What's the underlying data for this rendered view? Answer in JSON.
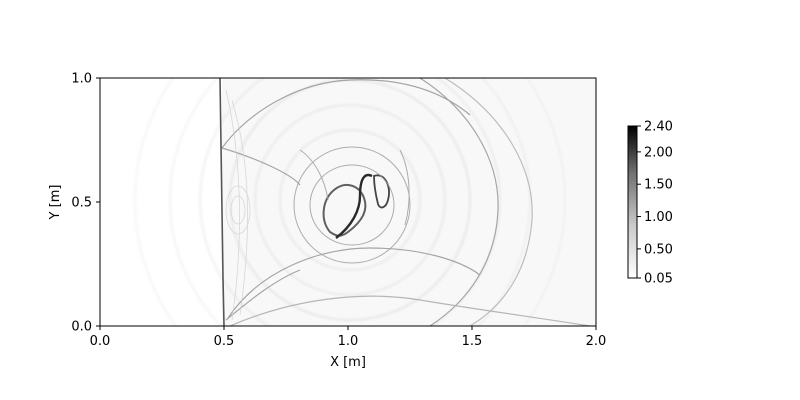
{
  "chart_data": {
    "type": "heatmap",
    "description_free": true,
    "xlabel": "X [m]",
    "ylabel": "Y [m]",
    "xlim": [
      0.0,
      2.0
    ],
    "ylim": [
      0.0,
      1.0
    ],
    "x_ticks": [
      {
        "value": 0.0,
        "label": "0.0"
      },
      {
        "value": 0.5,
        "label": "0.5"
      },
      {
        "value": 1.0,
        "label": "1.0"
      },
      {
        "value": 1.5,
        "label": "1.5"
      },
      {
        "value": 2.0,
        "label": "2.0"
      }
    ],
    "y_ticks": [
      {
        "value": 0.0,
        "label": "0.0"
      },
      {
        "value": 0.5,
        "label": "0.5"
      },
      {
        "value": 1.0,
        "label": "1.0"
      }
    ],
    "colormap": "Greys",
    "colorbar": {
      "vmin": 0.05,
      "vmax": 2.4,
      "ticks": [
        {
          "value": 0.05,
          "label": "0.05"
        },
        {
          "value": 0.5,
          "label": "0.50"
        },
        {
          "value": 1.0,
          "label": "1.00"
        },
        {
          "value": 1.5,
          "label": "1.50"
        },
        {
          "value": 2.0,
          "label": "2.00"
        },
        {
          "value": 2.4,
          "label": "2.40"
        }
      ]
    },
    "grid": false
  }
}
